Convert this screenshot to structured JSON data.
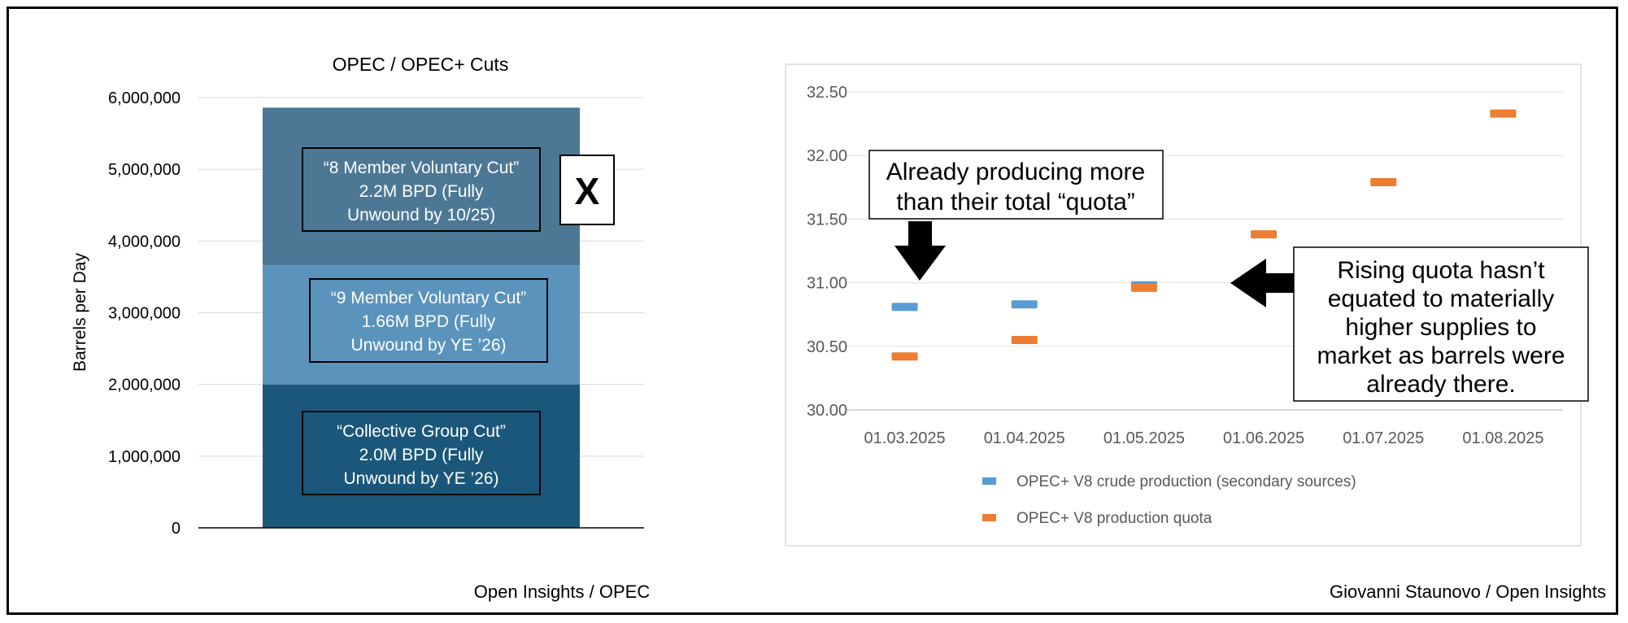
{
  "left": {
    "chart_data": {
      "type": "bar",
      "stacked": true,
      "title": "OPEC / OPEC+ Cuts",
      "ylabel": "Barrels per Day",
      "ylim": [
        0,
        6000000
      ],
      "yticks": [
        "0",
        "1,000,000",
        "2,000,000",
        "3,000,000",
        "4,000,000",
        "5,000,000",
        "6,000,000"
      ],
      "grid": true,
      "series": [
        {
          "values": [
            2000000
          ],
          "color": "#1b577b"
        },
        {
          "values": [
            1660000
          ],
          "color": "#5a93bc"
        },
        {
          "values": [
            2200000
          ],
          "color": "#4c7895"
        }
      ]
    },
    "boxes": {
      "collective": {
        "line1": "“Collective Group Cut”",
        "line2": "2.0M BPD (Fully",
        "line3": "Unwound by YE ’26)"
      },
      "nine": {
        "line1": "“9 Member Voluntary Cut”",
        "line2": "1.66M BPD (Fully",
        "line3": "Unwound by YE ’26)"
      },
      "eight": {
        "line1": "“8 Member Voluntary Cut”",
        "line2": "2.2M BPD (Fully",
        "line3": "Unwound by 10/25)"
      }
    },
    "x_mark": "X",
    "source": "Open Insights / OPEC"
  },
  "right": {
    "chart_data": {
      "type": "scatter",
      "marker": "dash",
      "x": [
        "01.03.2025",
        "01.04.2025",
        "01.05.2025",
        "01.06.2025",
        "01.07.2025",
        "01.08.2025"
      ],
      "ylim": [
        30.0,
        32.5
      ],
      "yticks": [
        "30.00",
        "30.50",
        "31.00",
        "31.50",
        "32.00",
        "32.50"
      ],
      "grid": true,
      "legend_position": "bottom",
      "series": [
        {
          "name": "OPEC+ V8 crude production (secondary sources)",
          "values": [
            30.81,
            30.83,
            30.98,
            null,
            null,
            null
          ],
          "color": "#5b9bd5"
        },
        {
          "name": "OPEC+ V8 production quota",
          "values": [
            30.42,
            30.55,
            30.96,
            31.38,
            31.79,
            32.33
          ],
          "color": "#ed7d31"
        }
      ]
    },
    "callout_top": {
      "line1": "Already producing more",
      "line2": "than their total “quota”"
    },
    "callout_right": {
      "line1": "Rising quota hasn’t",
      "line2": "equated to materially",
      "line3": "higher supplies to",
      "line4": "market as barrels were",
      "line5": "already there."
    },
    "source": "Giovanni Staunovo / Open Insights"
  }
}
